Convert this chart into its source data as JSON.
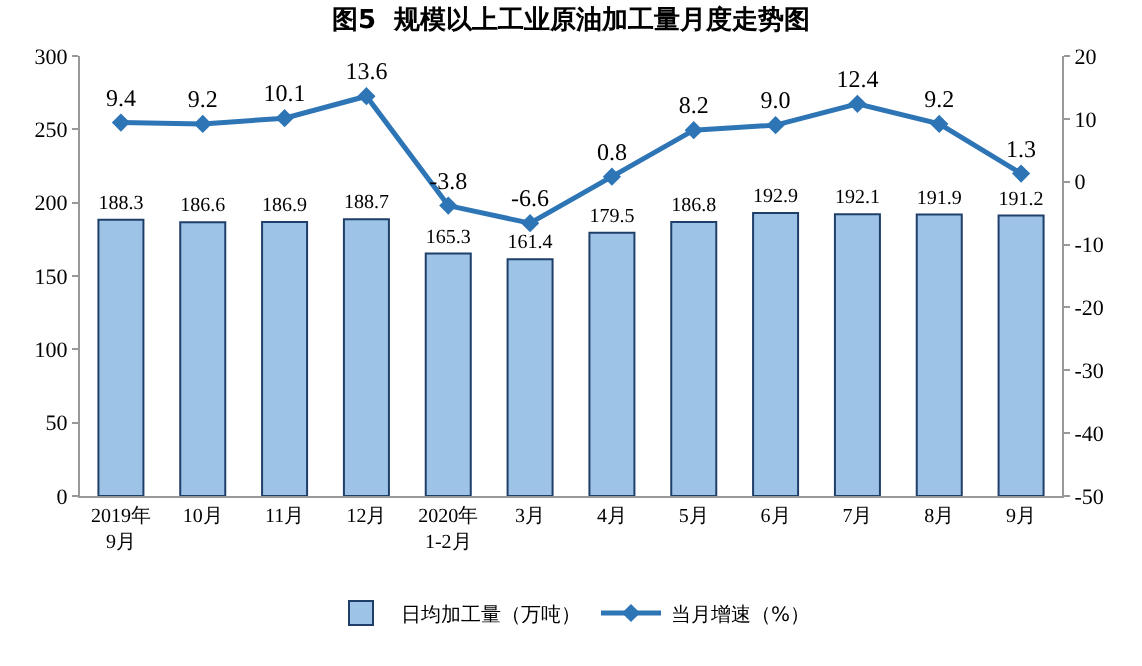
{
  "chart_data": {
    "type": "bar",
    "title": "图5  规模以上工业原油加工量月度走势图",
    "categories": [
      "2019年\n9月",
      "10月",
      "11月",
      "12月",
      "2020年\n1-2月",
      "3月",
      "4月",
      "5月",
      "6月",
      "7月",
      "8月",
      "9月"
    ],
    "series": [
      {
        "name": "日均加工量（万吨）",
        "color": "#9dc3e6",
        "values": [
          188.3,
          186.6,
          186.9,
          188.7,
          165.3,
          161.4,
          179.5,
          186.8,
          192.9,
          192.1,
          191.9,
          191.2
        ],
        "value_labels": [
          "188.3",
          "186.6",
          "186.9",
          "188.7",
          "165.3",
          "161.4",
          "179.5",
          "186.8",
          "192.9",
          "192.1",
          "191.9",
          "191.2"
        ]
      },
      {
        "name": "当月增速（%）",
        "type": "line",
        "axis": "y2",
        "color": "#2e75b6",
        "values": [
          9.4,
          9.2,
          10.1,
          13.6,
          -3.8,
          -6.6,
          0.8,
          8.2,
          9.0,
          12.4,
          9.2,
          1.3
        ],
        "value_labels": [
          "9.4",
          "9.2",
          "10.1",
          "13.6",
          "-3.8",
          "-6.6",
          "0.8",
          "8.2",
          "9.0",
          "12.4",
          "9.2",
          "1.3"
        ]
      }
    ],
    "ylim": [
      0,
      300
    ],
    "yticks": [
      0,
      50,
      100,
      150,
      200,
      250,
      300
    ],
    "y2lim": [
      -50,
      20
    ],
    "y2ticks": [
      -50,
      -40,
      -30,
      -20,
      -10,
      0,
      10,
      20
    ],
    "marker": "diamond",
    "line_style": "solid",
    "grid": false,
    "legend": "bottom"
  }
}
